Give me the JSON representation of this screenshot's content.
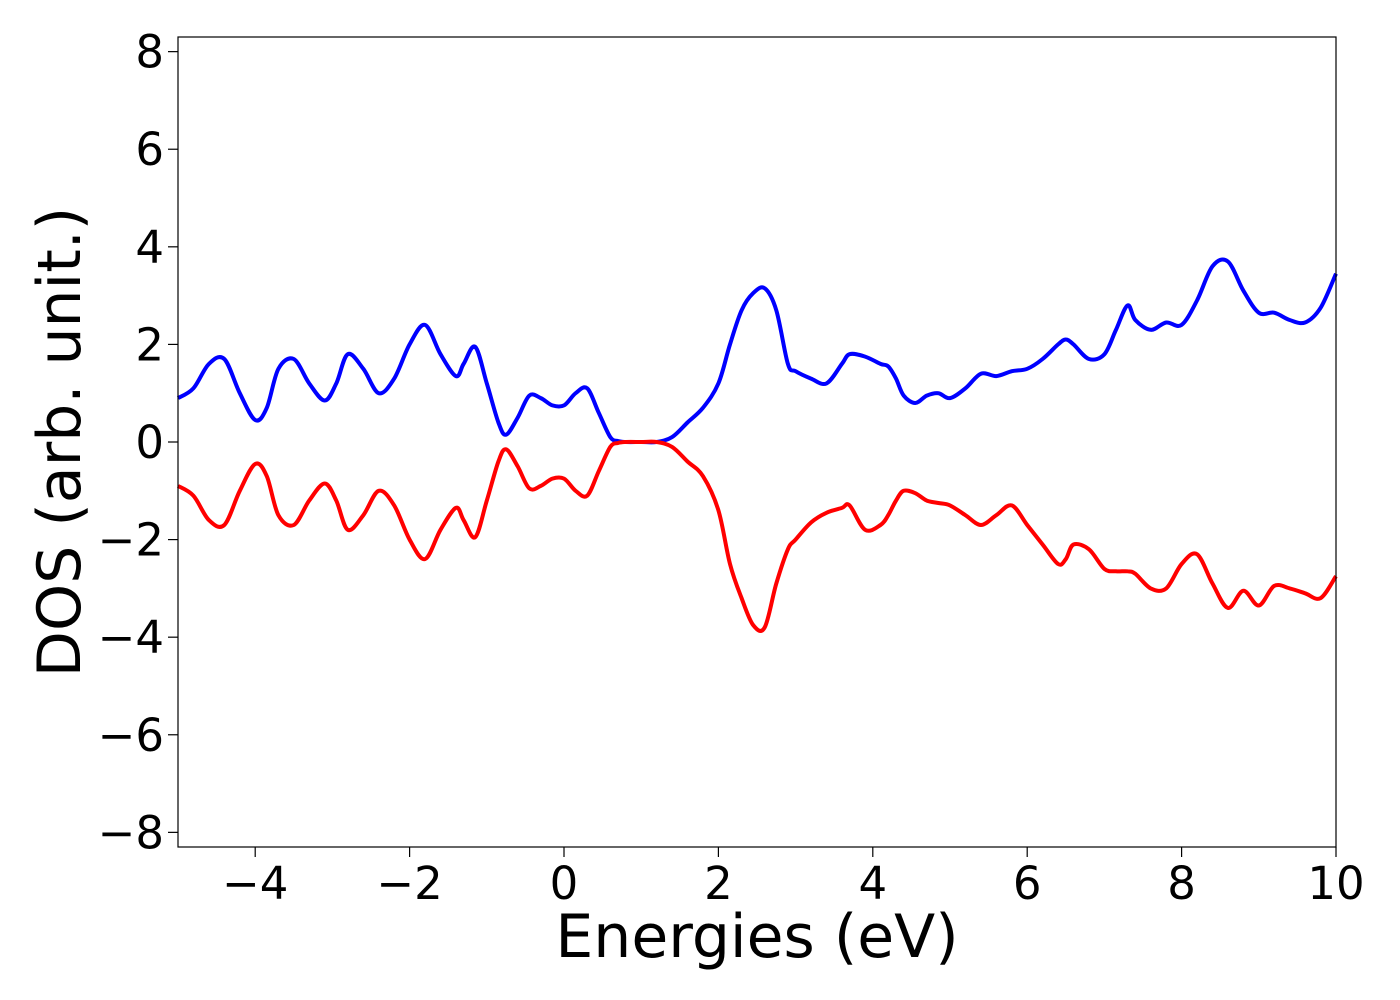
{
  "chart_data": {
    "type": "line",
    "title": "",
    "xlabel": "Energies (eV)",
    "ylabel": "DOS (arb. unit.)",
    "xlim": [
      -5,
      10
    ],
    "ylim": [
      -8.3,
      8.3
    ],
    "x_ticks": [
      -4,
      -2,
      0,
      2,
      4,
      6,
      8,
      10
    ],
    "x_tick_labels": [
      "−4",
      "−2",
      "0",
      "2",
      "4",
      "6",
      "8",
      "10"
    ],
    "y_ticks": [
      8,
      6,
      4,
      2,
      0,
      -2,
      -4,
      -6,
      -8
    ],
    "y_tick_labels": [
      "8",
      "6",
      "4",
      "2",
      "0",
      "−2",
      "−4",
      "−6",
      "−8"
    ],
    "grid": false,
    "legend": "none",
    "series": [
      {
        "color": "#0000ff",
        "x": [
          -5.0,
          -4.8,
          -4.6,
          -4.4,
          -4.2,
          -4.0,
          -3.85,
          -3.7,
          -3.5,
          -3.3,
          -3.1,
          -2.95,
          -2.8,
          -2.6,
          -2.4,
          -2.2,
          -2.0,
          -1.8,
          -1.6,
          -1.4,
          -1.3,
          -1.15,
          -1.0,
          -0.85,
          -0.75,
          -0.6,
          -0.45,
          -0.3,
          -0.15,
          0.0,
          0.15,
          0.3,
          0.45,
          0.6,
          0.7,
          0.8,
          1.0,
          1.2,
          1.4,
          1.6,
          1.8,
          2.0,
          2.15,
          2.3,
          2.45,
          2.6,
          2.75,
          2.9,
          3.0,
          3.2,
          3.4,
          3.6,
          3.7,
          3.9,
          4.1,
          4.2,
          4.3,
          4.4,
          4.55,
          4.7,
          4.85,
          5.0,
          5.2,
          5.4,
          5.6,
          5.8,
          6.0,
          6.2,
          6.4,
          6.5,
          6.6,
          6.8,
          7.0,
          7.15,
          7.3,
          7.4,
          7.6,
          7.8,
          8.0,
          8.2,
          8.4,
          8.6,
          8.8,
          9.0,
          9.2,
          9.4,
          9.6,
          9.8,
          10.0
        ],
        "y": [
          0.9,
          1.1,
          1.6,
          1.7,
          1.0,
          0.45,
          0.7,
          1.5,
          1.7,
          1.2,
          0.85,
          1.2,
          1.8,
          1.5,
          1.0,
          1.3,
          2.0,
          2.4,
          1.8,
          1.35,
          1.6,
          1.95,
          1.2,
          0.4,
          0.15,
          0.5,
          0.95,
          0.9,
          0.75,
          0.75,
          1.0,
          1.1,
          0.6,
          0.1,
          0.02,
          0.0,
          0.0,
          0.0,
          0.1,
          0.4,
          0.7,
          1.2,
          2.0,
          2.7,
          3.05,
          3.15,
          2.7,
          1.6,
          1.45,
          1.3,
          1.2,
          1.6,
          1.8,
          1.75,
          1.6,
          1.55,
          1.3,
          0.95,
          0.8,
          0.95,
          1.0,
          0.9,
          1.1,
          1.4,
          1.35,
          1.45,
          1.5,
          1.7,
          2.0,
          2.1,
          2.0,
          1.7,
          1.8,
          2.3,
          2.8,
          2.5,
          2.3,
          2.45,
          2.4,
          2.9,
          3.6,
          3.7,
          3.1,
          2.65,
          2.65,
          2.5,
          2.45,
          2.75,
          3.45
        ]
      },
      {
        "color": "#ff0000",
        "x": [
          -5.0,
          -4.8,
          -4.6,
          -4.4,
          -4.2,
          -4.0,
          -3.85,
          -3.7,
          -3.5,
          -3.3,
          -3.1,
          -2.95,
          -2.8,
          -2.6,
          -2.4,
          -2.2,
          -2.0,
          -1.8,
          -1.6,
          -1.4,
          -1.3,
          -1.15,
          -1.0,
          -0.85,
          -0.75,
          -0.6,
          -0.45,
          -0.3,
          -0.15,
          0.0,
          0.15,
          0.3,
          0.45,
          0.6,
          0.7,
          0.8,
          1.0,
          1.2,
          1.4,
          1.6,
          1.8,
          2.0,
          2.15,
          2.3,
          2.45,
          2.6,
          2.75,
          2.9,
          3.0,
          3.2,
          3.4,
          3.6,
          3.7,
          3.9,
          4.1,
          4.2,
          4.3,
          4.4,
          4.55,
          4.7,
          4.85,
          5.0,
          5.2,
          5.4,
          5.6,
          5.8,
          6.0,
          6.2,
          6.4,
          6.5,
          6.6,
          6.8,
          7.0,
          7.15,
          7.3,
          7.4,
          7.6,
          7.8,
          8.0,
          8.2,
          8.4,
          8.6,
          8.8,
          9.0,
          9.2,
          9.4,
          9.6,
          9.8,
          10.0
        ],
        "y": [
          -0.9,
          -1.1,
          -1.6,
          -1.7,
          -1.0,
          -0.45,
          -0.7,
          -1.5,
          -1.7,
          -1.2,
          -0.85,
          -1.2,
          -1.8,
          -1.5,
          -1.0,
          -1.3,
          -2.0,
          -2.4,
          -1.8,
          -1.35,
          -1.6,
          -1.95,
          -1.2,
          -0.4,
          -0.15,
          -0.5,
          -0.95,
          -0.9,
          -0.75,
          -0.75,
          -1.0,
          -1.1,
          -0.6,
          -0.1,
          -0.02,
          0.0,
          0.0,
          0.0,
          -0.1,
          -0.4,
          -0.7,
          -1.4,
          -2.5,
          -3.2,
          -3.75,
          -3.8,
          -2.9,
          -2.2,
          -2.0,
          -1.65,
          -1.45,
          -1.35,
          -1.3,
          -1.8,
          -1.7,
          -1.5,
          -1.2,
          -1.0,
          -1.05,
          -1.2,
          -1.25,
          -1.3,
          -1.5,
          -1.7,
          -1.5,
          -1.3,
          -1.7,
          -2.1,
          -2.5,
          -2.4,
          -2.1,
          -2.2,
          -2.6,
          -2.65,
          -2.65,
          -2.7,
          -3.0,
          -3.0,
          -2.5,
          -2.3,
          -2.9,
          -3.4,
          -3.05,
          -3.35,
          -2.95,
          -3.0,
          -3.1,
          -3.2,
          -2.75
        ]
      }
    ]
  }
}
